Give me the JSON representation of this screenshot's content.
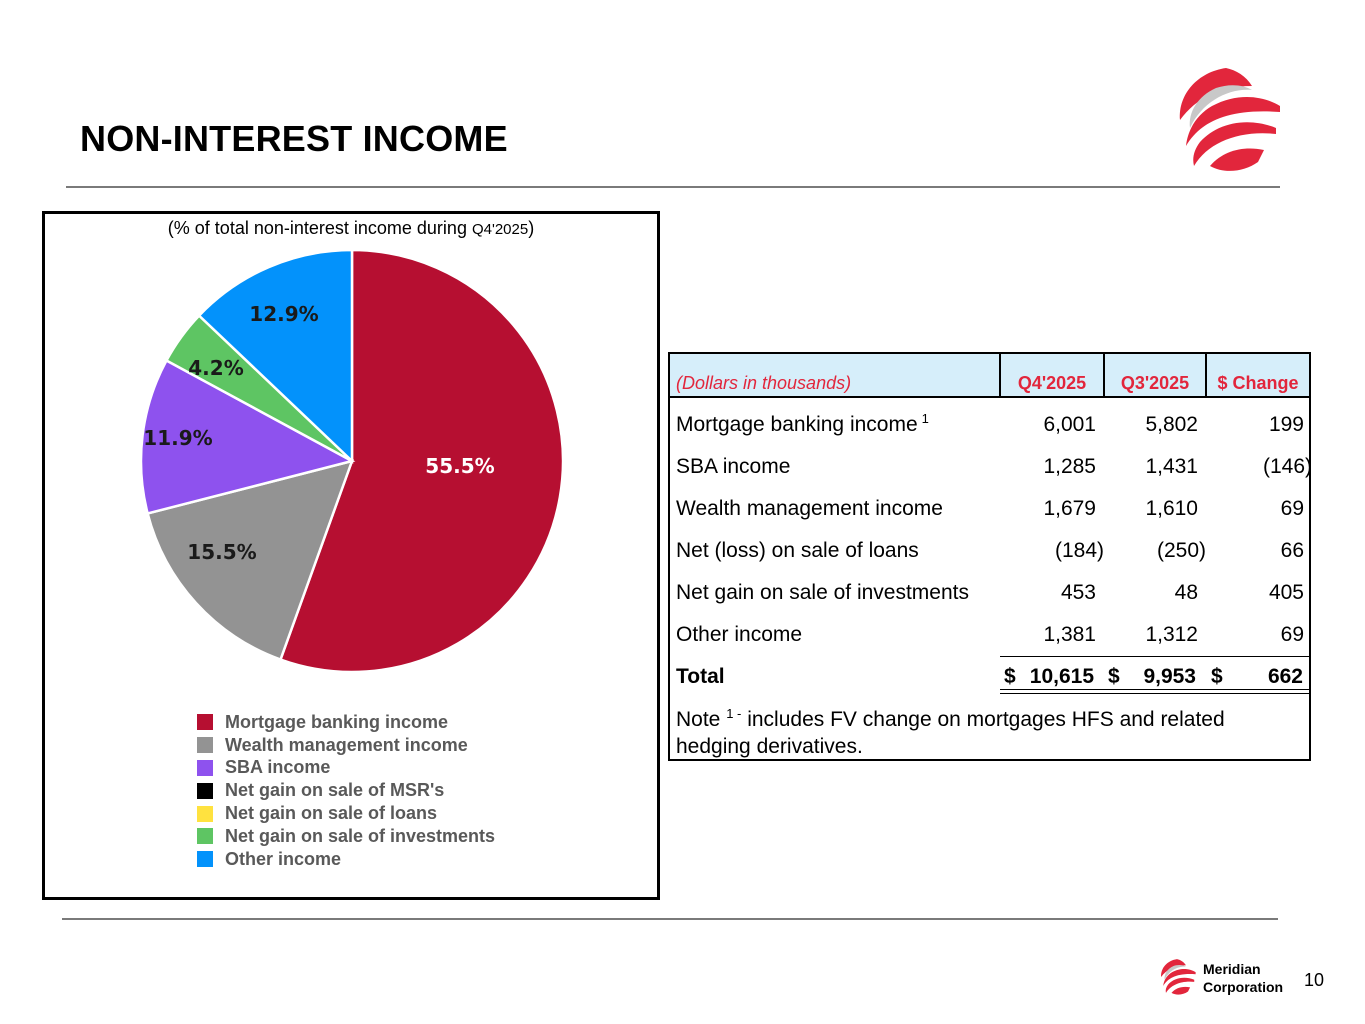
{
  "page": {
    "title": "NON-INTEREST INCOME",
    "page_number": "10",
    "footer_logo_text": [
      "Meridian",
      "Corporation"
    ]
  },
  "colors": {
    "mortgage": "#b60f31",
    "wealth": "#939393",
    "sba": "#8e52ee",
    "msr": "#000000",
    "loans": "#ffe23f",
    "investments": "#5ec563",
    "other": "#0392fb",
    "logo_red": "#e2263c",
    "table_header_bg": "#d6eefa"
  },
  "chart_data": {
    "type": "pie",
    "subtitle_prefix": "(% of total non-interest income during ",
    "subtitle_period": "Q4'2025",
    "subtitle_suffix": ")",
    "slices": [
      {
        "label": "Mortgage banking income",
        "value": 55.5,
        "display": "55.5%",
        "color": "#b60f31"
      },
      {
        "label": "Wealth management income",
        "value": 15.5,
        "display": "15.5%",
        "color": "#939393"
      },
      {
        "label": "SBA income",
        "value": 11.9,
        "display": "11.9%",
        "color": "#8e52ee"
      },
      {
        "label": "Net gain on sale of investments",
        "value": 4.2,
        "display": "4.2%",
        "color": "#5ec563"
      },
      {
        "label": "Other income",
        "value": 12.9,
        "display": "12.9%",
        "color": "#0392fb"
      }
    ],
    "legend": [
      {
        "label": "Mortgage banking income",
        "color": "#b60f31"
      },
      {
        "label": "Wealth management income",
        "color": "#939393"
      },
      {
        "label": "SBA income",
        "color": "#8e52ee"
      },
      {
        "label": "Net gain on sale of MSR's",
        "color": "#000000"
      },
      {
        "label": "Net gain on sale of loans",
        "color": "#ffe23f"
      },
      {
        "label": "Net gain on sale of investments",
        "color": "#5ec563"
      },
      {
        "label": "Other income",
        "color": "#0392fb"
      }
    ],
    "legend_position": "bottom"
  },
  "table": {
    "header_label": "(Dollars in thousands)",
    "columns": [
      "Q4'2025",
      "Q3'2025",
      "$ Change"
    ],
    "rows": [
      {
        "label": "Mortgage banking income",
        "sup": "1",
        "q4": "6,001",
        "q3": "5,802",
        "chg": "199"
      },
      {
        "label": "SBA income",
        "sup": "",
        "q4": "1,285",
        "q3": "1,431",
        "chg": "(146)"
      },
      {
        "label": "Wealth management income",
        "sup": "",
        "q4": "1,679",
        "q3": "1,610",
        "chg": "69"
      },
      {
        "label": "Net (loss) on sale of loans",
        "sup": "",
        "q4": "(184)",
        "q3": "(250)",
        "chg": "66"
      },
      {
        "label": "Net gain on sale of investments",
        "sup": "",
        "q4": "453",
        "q3": "48",
        "chg": "405"
      },
      {
        "label": "Other income",
        "sup": "",
        "q4": "1,381",
        "q3": "1,312",
        "chg": "69"
      }
    ],
    "total": {
      "label": "Total",
      "q4": "10,615",
      "q3": "9,953",
      "chg": "662",
      "currency": "$"
    },
    "note_prefix": "Note ",
    "note_sup": "1 -",
    "note_text": " includes FV change on mortgages HFS and related hedging derivatives."
  }
}
